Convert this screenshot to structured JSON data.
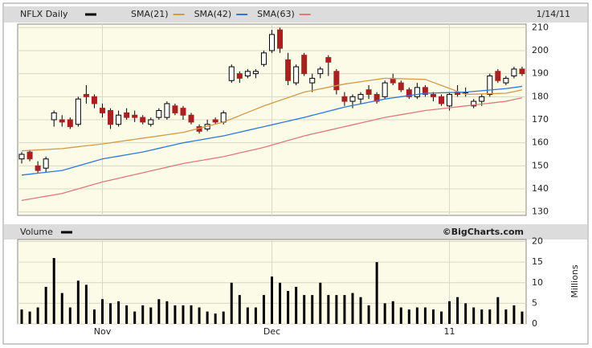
{
  "chart_data": [
    {
      "type": "candlestick",
      "title": "NFLX Daily",
      "date": "1/14/11",
      "open": [
        153,
        156,
        150,
        149,
        170,
        170,
        170,
        168,
        181,
        180,
        175,
        174,
        168,
        173,
        172,
        171,
        168,
        171,
        171,
        176,
        175,
        172,
        167,
        166,
        170,
        169,
        187,
        190,
        189,
        190,
        194,
        200,
        209,
        196,
        186,
        198,
        186,
        190,
        197,
        191,
        180,
        178,
        179,
        183,
        181,
        180,
        188,
        186,
        183,
        180,
        184,
        181,
        180,
        176,
        182,
        182,
        176,
        178,
        181,
        191,
        186,
        189,
        192
      ],
      "high": [
        156,
        157,
        152,
        154,
        174,
        172,
        171,
        180,
        185,
        181,
        177,
        175,
        174,
        175,
        174,
        172,
        171,
        175,
        178,
        177,
        176,
        173,
        168,
        170,
        171,
        174,
        194,
        191,
        192,
        192,
        200,
        209,
        210,
        199,
        194,
        199,
        190,
        193,
        198,
        192,
        182,
        181,
        182,
        185,
        182,
        187,
        190,
        187,
        184,
        186,
        185,
        182,
        181,
        182,
        185,
        184,
        179,
        181,
        190,
        192,
        189,
        193,
        193
      ],
      "low": [
        151,
        152,
        147,
        147,
        167,
        167,
        166,
        167,
        177,
        175,
        171,
        166,
        167,
        170,
        169,
        168,
        167,
        170,
        170,
        172,
        170,
        168,
        164,
        165,
        168,
        168,
        186,
        186,
        188,
        188,
        193,
        199,
        199,
        185,
        185,
        189,
        182,
        188,
        189,
        181,
        176,
        175,
        177,
        179,
        177,
        179,
        185,
        182,
        179,
        179,
        180,
        178,
        176,
        174,
        180,
        180,
        175,
        176,
        180,
        186,
        185,
        188,
        189
      ],
      "close": [
        155,
        153,
        148,
        153,
        173,
        169,
        167,
        179,
        180,
        177,
        173,
        168,
        172,
        171,
        171,
        169,
        170,
        174,
        177,
        173,
        172,
        169,
        165,
        168,
        169,
        173,
        193,
        188,
        191,
        191,
        199,
        207,
        201,
        187,
        193,
        190,
        188,
        192,
        195,
        183,
        178,
        180,
        181,
        181,
        178,
        186,
        186,
        183,
        180,
        184,
        181,
        180,
        177,
        181,
        181,
        182,
        178,
        180,
        189,
        187,
        188,
        192,
        190
      ],
      "up_color": "#ffffff",
      "down_color": "#a82020",
      "series": [
        {
          "name": "SMA(21)",
          "color": "#d49a4a",
          "values": [
            156.5,
            156.7,
            156.9,
            157.1,
            157.3,
            157.5,
            157.9,
            158.3,
            158.7,
            159.1,
            159.5,
            160,
            160.5,
            161,
            161.5,
            162,
            162.5,
            163,
            163.5,
            164,
            164.5,
            165.4,
            166.3,
            167.2,
            168.1,
            169,
            170.4,
            171.8,
            173.2,
            174.6,
            176,
            177.2,
            178.4,
            179.6,
            180.8,
            182,
            182.7,
            183.4,
            184.1,
            184.8,
            185.5,
            186,
            186.5,
            187,
            187.5,
            188,
            187.9,
            187.8,
            187.7,
            187.6,
            187.5,
            186.2,
            184.9,
            183.6,
            182.3,
            181,
            181.1,
            181.2,
            181.3,
            181.4,
            181.5,
            182.2,
            183
          ]
        },
        {
          "name": "SMA(42)",
          "color": "#2f78d8",
          "values": [
            146,
            146.4,
            146.8,
            147.2,
            147.6,
            148,
            149,
            150,
            151,
            152,
            153,
            153.6,
            154.2,
            154.8,
            155.4,
            156,
            156.8,
            157.6,
            158.4,
            159.2,
            160,
            160.6,
            161.2,
            161.8,
            162.4,
            163,
            163.8,
            164.6,
            165.4,
            166.2,
            167,
            167.8,
            168.6,
            169.4,
            170.2,
            171,
            171.9,
            172.8,
            173.7,
            174.6,
            175.5,
            176.2,
            176.9,
            177.6,
            178.3,
            179,
            179.5,
            180,
            180.5,
            181,
            181.5,
            181.6,
            181.7,
            181.8,
            181.9,
            182,
            182.3,
            182.6,
            182.9,
            183.2,
            183.5,
            184,
            184.5
          ]
        },
        {
          "name": "SMA(63)",
          "color": "#e07a7a",
          "values": [
            135,
            135.6,
            136.2,
            136.8,
            137.4,
            138,
            139,
            140,
            141,
            142,
            143,
            143.8,
            144.6,
            145.4,
            146.2,
            147,
            147.8,
            148.6,
            149.4,
            150.2,
            151,
            151.6,
            152.2,
            152.8,
            153.4,
            154,
            154.8,
            155.6,
            156.4,
            157.2,
            158,
            159,
            160,
            161,
            162,
            163,
            163.8,
            164.6,
            165.4,
            166.2,
            167,
            167.8,
            168.6,
            169.4,
            170.2,
            171,
            171.6,
            172.2,
            172.8,
            173.4,
            174,
            174.4,
            174.8,
            175.2,
            175.6,
            176,
            176.4,
            176.8,
            177.2,
            177.6,
            178,
            178.8,
            179.5
          ]
        }
      ],
      "ylim": [
        128.5,
        211.5
      ],
      "yticks": [
        130,
        140,
        150,
        160,
        170,
        180,
        190,
        200,
        210
      ],
      "grid": true
    },
    {
      "type": "bar",
      "title": "Volume",
      "ylabel": "Millions",
      "source": "©BigCharts.com",
      "color": "#000000",
      "categories": [
        null,
        null,
        null,
        null,
        null,
        null,
        null,
        null,
        null,
        null,
        "Nov",
        null,
        null,
        null,
        null,
        null,
        null,
        null,
        null,
        null,
        null,
        null,
        null,
        null,
        null,
        null,
        null,
        null,
        null,
        null,
        null,
        "Dec",
        null,
        null,
        null,
        null,
        null,
        null,
        null,
        null,
        null,
        null,
        null,
        null,
        null,
        null,
        null,
        null,
        null,
        null,
        null,
        null,
        null,
        "11",
        null,
        null,
        null,
        null,
        null,
        null,
        null,
        null,
        null
      ],
      "values": [
        3.5,
        3,
        4,
        9,
        16,
        7.5,
        4,
        10.5,
        9.5,
        3.5,
        6,
        5,
        5.5,
        4.5,
        3,
        4.5,
        4,
        6,
        5.5,
        4.5,
        4.5,
        4.5,
        4,
        3,
        2.5,
        3,
        10,
        7,
        4,
        4,
        7,
        11.5,
        10,
        8,
        9,
        7,
        7,
        10,
        7,
        7,
        7,
        7.5,
        6.5,
        4.5,
        15,
        5,
        5.5,
        4,
        3.5,
        4,
        4,
        3.5,
        3,
        5.5,
        6.5,
        5,
        4,
        3.5,
        3.5,
        6.5,
        3.5,
        4.5,
        3
      ],
      "ylim": [
        0,
        20.5
      ],
      "yticks": [
        0,
        5,
        10,
        15,
        20
      ],
      "grid": true
    }
  ]
}
